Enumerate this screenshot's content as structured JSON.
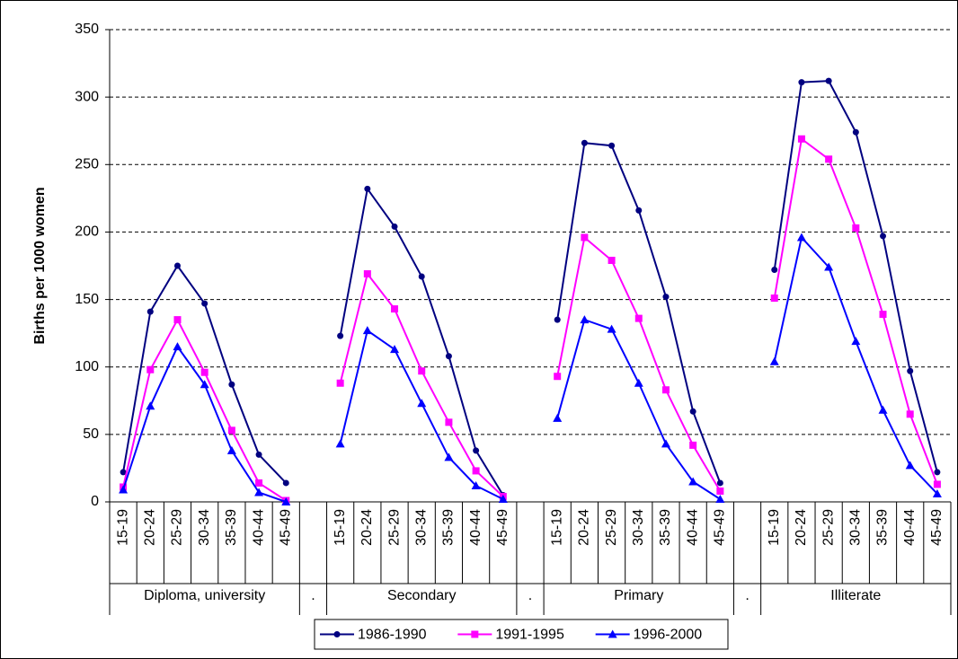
{
  "chart_data": {
    "type": "line",
    "y_label": "Births per 1000 women",
    "categories": [
      "15-19",
      "20-24",
      "25-29",
      "30-34",
      "35-39",
      "40-44",
      "45-49",
      null,
      "15-19",
      "20-24",
      "25-29",
      "30-34",
      "35-39",
      "40-44",
      "45-49",
      null,
      "15-19",
      "20-24",
      "25-29",
      "30-34",
      "35-39",
      "40-44",
      "45-49",
      null,
      "15-19",
      "20-24",
      "25-29",
      "30-34",
      "35-39",
      "40-44",
      "45-49"
    ],
    "groups": [
      "Diploma, university",
      ".",
      "Secondary",
      ".",
      "Primary",
      ".",
      "Illiterate"
    ],
    "series": [
      {
        "name": "1986-1990",
        "color": "#000080",
        "marker": "circle",
        "values": [
          22,
          141,
          175,
          147,
          87,
          35,
          14,
          null,
          123,
          232,
          204,
          167,
          108,
          38,
          5,
          null,
          135,
          266,
          264,
          216,
          152,
          67,
          14,
          null,
          172,
          311,
          312,
          274,
          197,
          97,
          22
        ]
      },
      {
        "name": "1991-1995",
        "color": "#ff00ff",
        "marker": "square",
        "values": [
          11,
          98,
          135,
          96,
          53,
          14,
          1,
          null,
          88,
          169,
          143,
          97,
          59,
          23,
          4,
          null,
          93,
          196,
          179,
          136,
          83,
          42,
          8,
          null,
          151,
          269,
          254,
          203,
          139,
          65,
          13
        ]
      },
      {
        "name": "1996-2000",
        "color": "#0000ff",
        "marker": "triangle",
        "values": [
          9,
          71,
          115,
          87,
          38,
          7,
          0,
          null,
          43,
          127,
          113,
          73,
          33,
          12,
          2,
          null,
          62,
          135,
          128,
          88,
          43,
          15,
          2,
          null,
          104,
          196,
          174,
          119,
          68,
          27,
          6
        ]
      }
    ],
    "ylim": [
      0,
      350
    ],
    "yticks": [
      0,
      50,
      100,
      150,
      200,
      250,
      300,
      350
    ],
    "grid": true,
    "legend": "bottom"
  }
}
